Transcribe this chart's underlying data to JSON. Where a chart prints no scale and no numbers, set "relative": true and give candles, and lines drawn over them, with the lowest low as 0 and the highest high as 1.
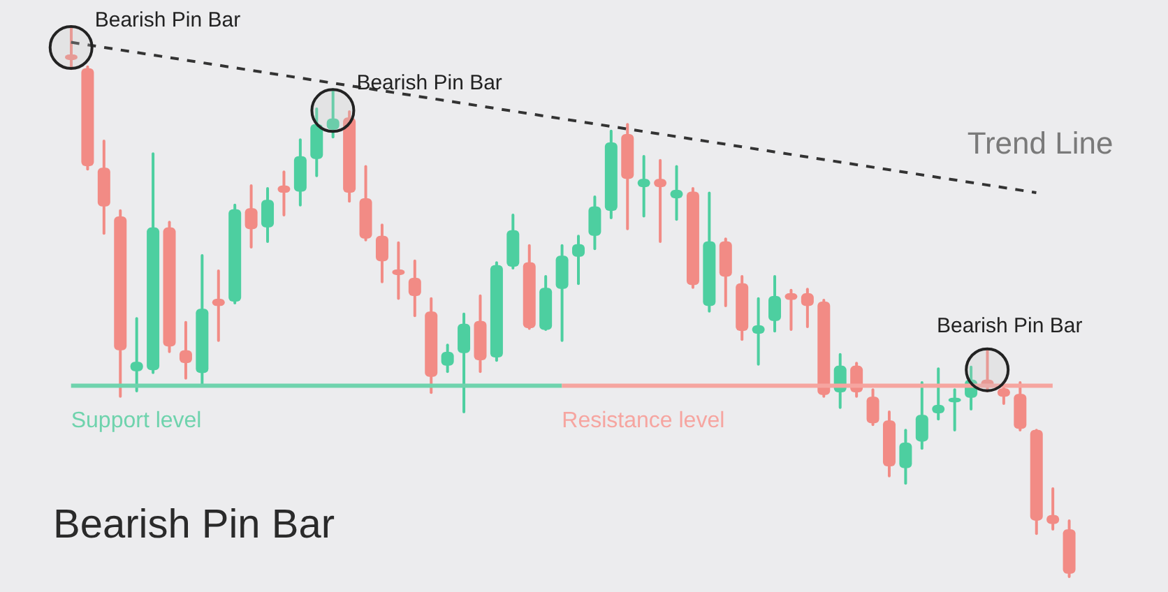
{
  "chart_data": {
    "type": "candlestick",
    "relative": true,
    "title": "Bearish Pin Bar",
    "tick_labels": false,
    "categories": [
      null,
      null,
      null,
      null,
      null,
      null,
      null,
      null,
      null,
      null,
      null,
      null,
      null,
      null,
      null,
      null,
      null,
      null,
      null,
      null,
      null,
      null,
      null,
      null,
      null,
      null,
      null,
      null,
      null,
      null,
      null,
      null,
      null,
      null,
      null,
      null,
      null,
      null,
      null,
      null,
      null,
      null,
      null,
      null,
      null,
      null,
      null,
      null,
      null,
      null,
      null,
      null,
      null,
      null,
      null,
      null,
      null,
      null,
      null,
      null,
      null,
      null
    ],
    "ohlc": [
      [
        0.947,
        1,
        0.919,
        0.937
      ],
      [
        0.922,
        0.927,
        0.737,
        0.745
      ],
      [
        0.742,
        0.793,
        0.621,
        0.672
      ],
      [
        0.654,
        0.667,
        0.326,
        0.412
      ],
      [
        0.374,
        0.472,
        0.336,
        0.391
      ],
      [
        0.376,
        0.77,
        0.369,
        0.634
      ],
      [
        0.634,
        0.646,
        0.407,
        0.419
      ],
      [
        0.412,
        0.465,
        0.359,
        0.389
      ],
      [
        0.371,
        0.586,
        0.346,
        0.487
      ],
      [
        0.505,
        0.558,
        0.427,
        0.492
      ],
      [
        0.5,
        0.677,
        0.495,
        0.667
      ],
      [
        0.669,
        0.712,
        0.596,
        0.631
      ],
      [
        0.634,
        0.707,
        0.606,
        0.684
      ],
      [
        0.71,
        0.737,
        0.654,
        0.697
      ],
      [
        0.699,
        0.795,
        0.672,
        0.763
      ],
      [
        0.758,
        0.851,
        0.725,
        0.821
      ],
      [
        0.811,
        0.886,
        0.795,
        0.831
      ],
      [
        0.833,
        0.846,
        0.679,
        0.697
      ],
      [
        0.687,
        0.747,
        0.609,
        0.614
      ],
      [
        0.619,
        0.641,
        0.533,
        0.573
      ],
      [
        0.558,
        0.609,
        0.503,
        0.548
      ],
      [
        0.543,
        0.576,
        0.472,
        0.51
      ],
      [
        0.482,
        0.508,
        0.333,
        0.364
      ],
      [
        0.384,
        0.424,
        0.371,
        0.409
      ],
      [
        0.407,
        0.48,
        0.298,
        0.46
      ],
      [
        0.465,
        0.513,
        0.371,
        0.394
      ],
      [
        0.399,
        0.573,
        0.391,
        0.566
      ],
      [
        0.563,
        0.659,
        0.558,
        0.629
      ],
      [
        0.571,
        0.604,
        0.449,
        0.452
      ],
      [
        0.449,
        0.548,
        0.447,
        0.525
      ],
      [
        0.523,
        0.604,
        0.427,
        0.583
      ],
      [
        0.581,
        0.621,
        0.53,
        0.604
      ],
      [
        0.619,
        0.692,
        0.593,
        0.672
      ],
      [
        0.664,
        0.811,
        0.649,
        0.788
      ],
      [
        0.803,
        0.823,
        0.629,
        0.722
      ],
      [
        0.707,
        0.765,
        0.652,
        0.722
      ],
      [
        0.722,
        0.758,
        0.606,
        0.707
      ],
      [
        0.687,
        0.747,
        0.646,
        0.702
      ],
      [
        0.699,
        0.707,
        0.523,
        0.53
      ],
      [
        0.492,
        0.699,
        0.48,
        0.609
      ],
      [
        0.609,
        0.616,
        0.49,
        0.545
      ],
      [
        0.533,
        0.548,
        0.429,
        0.447
      ],
      [
        0.442,
        0.508,
        0.384,
        0.457
      ],
      [
        0.465,
        0.548,
        0.444,
        0.51
      ],
      [
        0.515,
        0.523,
        0.447,
        0.503
      ],
      [
        0.515,
        0.525,
        0.452,
        0.492
      ],
      [
        0.5,
        0.505,
        0.326,
        0.331
      ],
      [
        0.336,
        0.407,
        0.306,
        0.384
      ],
      [
        0.384,
        0.391,
        0.326,
        0.336
      ],
      [
        0.328,
        0.343,
        0.275,
        0.28
      ],
      [
        0.285,
        0.303,
        0.182,
        0.202
      ],
      [
        0.199,
        0.27,
        0.169,
        0.245
      ],
      [
        0.247,
        0.356,
        0.232,
        0.295
      ],
      [
        0.298,
        0.381,
        0.285,
        0.313
      ],
      [
        0.318,
        0.343,
        0.265,
        0.326
      ],
      [
        0.326,
        0.384,
        0.303,
        0.359
      ],
      [
        0.359,
        0.417,
        0.336,
        0.346
      ],
      [
        0.343,
        0.348,
        0.313,
        0.328
      ],
      [
        0.333,
        0.356,
        0.265,
        0.27
      ],
      [
        0.268,
        0.27,
        0.078,
        0.104
      ],
      [
        0.114,
        0.164,
        0.086,
        0.098
      ],
      [
        0.088,
        0.106,
        0,
        0.008
      ]
    ],
    "colors": [
      "#f28b85",
      "#f28b85",
      "#f28b85",
      "#f28b85",
      "#4dcfa0",
      "#4dcfa0",
      "#f28b85",
      "#f28b85",
      "#4dcfa0",
      "#f28b85",
      "#4dcfa0",
      "#f28b85",
      "#4dcfa0",
      "#f28b85",
      "#4dcfa0",
      "#4dcfa0",
      "#4dcfa0",
      "#f28b85",
      "#f28b85",
      "#f28b85",
      "#f28b85",
      "#f28b85",
      "#f28b85",
      "#4dcfa0",
      "#4dcfa0",
      "#f28b85",
      "#4dcfa0",
      "#4dcfa0",
      "#f28b85",
      "#4dcfa0",
      "#4dcfa0",
      "#4dcfa0",
      "#4dcfa0",
      "#4dcfa0",
      "#f28b85",
      "#4dcfa0",
      "#f28b85",
      "#4dcfa0",
      "#f28b85",
      "#4dcfa0",
      "#f28b85",
      "#f28b85",
      "#4dcfa0",
      "#4dcfa0",
      "#f28b85",
      "#f28b85",
      "#f28b85",
      "#4dcfa0",
      "#f28b85",
      "#f28b85",
      "#f28b85",
      "#4dcfa0",
      "#4dcfa0",
      "#4dcfa0",
      "#4dcfa0",
      "#4dcfa0",
      "#f28b85",
      "#f28b85",
      "#f28b85",
      "#f28b85",
      "#f28b85",
      "#f28b85"
    ],
    "series": [
      {
        "type": "line",
        "name": "Trend Line",
        "color": "#333333",
        "line_style": "dashed",
        "values": [
          0.969,
          null,
          null,
          null,
          null,
          null,
          null,
          null,
          null,
          null,
          null,
          null,
          null,
          null,
          null,
          null,
          null,
          null,
          null,
          null,
          null,
          null,
          null,
          null,
          null,
          null,
          null,
          null,
          null,
          null,
          null,
          null,
          null,
          null,
          null,
          null,
          null,
          null,
          null,
          null,
          null,
          null,
          null,
          null,
          null,
          null,
          null,
          null,
          null,
          null,
          null,
          null,
          null,
          null,
          null,
          null,
          null,
          null,
          null,
          0.697,
          null,
          null
        ]
      },
      {
        "type": "line",
        "name": "Support level",
        "color": "#6fd3ad",
        "line_style": "solid",
        "values": [
          0.348,
          0.348,
          0.348,
          0.348,
          0.348,
          0.348,
          0.348,
          0.348,
          0.348,
          0.348,
          0.348,
          0.348,
          0.348,
          0.348,
          0.348,
          0.348,
          0.348,
          0.348,
          0.348,
          0.348,
          0.348,
          0.348,
          0.348,
          0.348,
          0.348,
          0.348,
          0.348,
          0.348,
          0.348,
          0.348,
          0.348,
          null,
          null,
          null,
          null,
          null,
          null,
          null,
          null,
          null,
          null,
          null,
          null,
          null,
          null,
          null,
          null,
          null,
          null,
          null,
          null,
          null,
          null,
          null,
          null,
          null,
          null,
          null,
          null,
          null,
          null,
          null
        ]
      },
      {
        "type": "line",
        "name": "Resistance level",
        "color": "#f6a5a0",
        "line_style": "solid",
        "values": [
          null,
          null,
          null,
          null,
          null,
          null,
          null,
          null,
          null,
          null,
          null,
          null,
          null,
          null,
          null,
          null,
          null,
          null,
          null,
          null,
          null,
          null,
          null,
          null,
          null,
          null,
          null,
          null,
          null,
          null,
          0.348,
          0.348,
          0.348,
          0.348,
          0.348,
          0.348,
          0.348,
          0.348,
          0.348,
          0.348,
          0.348,
          0.348,
          0.348,
          0.348,
          0.348,
          0.348,
          0.348,
          0.348,
          0.348,
          0.348,
          0.348,
          0.348,
          0.348,
          0.348,
          0.348,
          0.348,
          0.348,
          0.348,
          0.348,
          0.348,
          0.348,
          null
        ]
      }
    ],
    "annotations": [
      "Bearish Pin Bar",
      "Bearish Pin Bar",
      "Bearish Pin Bar"
    ]
  }
}
